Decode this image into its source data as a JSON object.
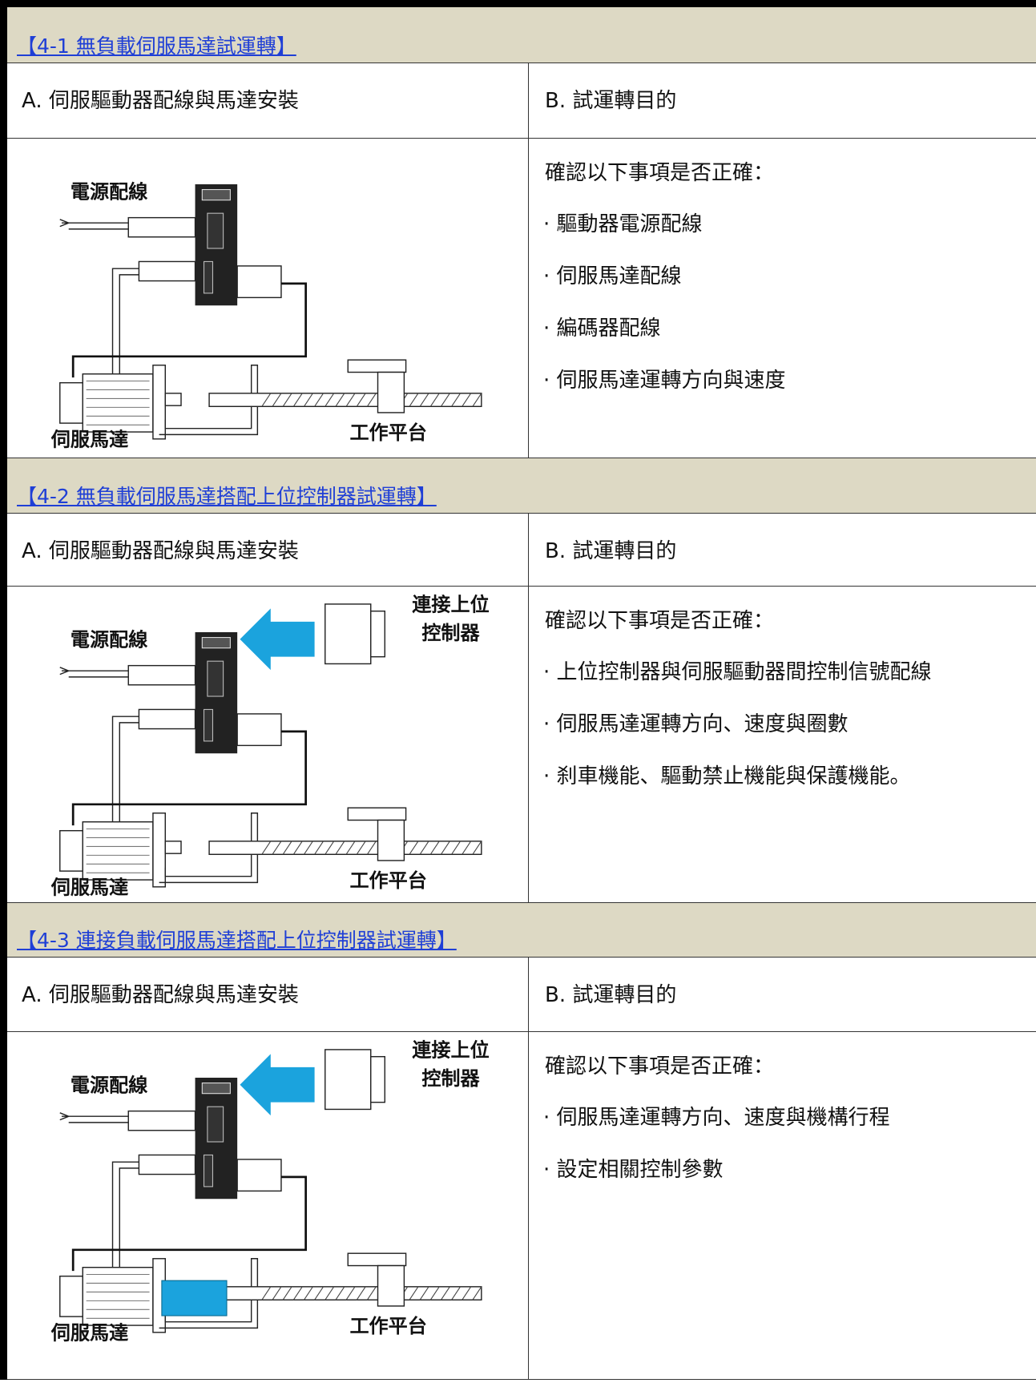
{
  "sections": [
    {
      "title": "【4-1 無負載伺服馬達試運轉】",
      "col_a": "A. 伺服驅動器配線與馬達安裝",
      "col_b": "B. 試運轉目的",
      "diagram": {
        "power": "電源配線",
        "motor": "伺服馬達",
        "platform": "工作平台"
      },
      "intro": "確認以下事項是否正確：",
      "items": [
        "· 驅動器電源配線",
        "· 伺服馬達配線",
        "· 編碼器配線",
        "· 伺服馬達運轉方向與速度"
      ]
    },
    {
      "title": "【4-2 無負載伺服馬達搭配上位控制器試運轉】",
      "col_a": "A. 伺服驅動器配線與馬達安裝",
      "col_b": "B. 試運轉目的",
      "diagram": {
        "power": "電源配線",
        "motor": "伺服馬達",
        "platform": "工作平台",
        "controller": [
          "連接上位",
          "控制器"
        ]
      },
      "intro": "確認以下事項是否正確：",
      "items": [
        "· 上位控制器與伺服驅動器間控制信號配線",
        "· 伺服馬達運轉方向、速度與圈數",
        "· 刹車機能、驅動禁止機能與保護機能。"
      ]
    },
    {
      "title": "【4-3 連接負載伺服馬達搭配上位控制器試運轉】",
      "col_a": "A. 伺服驅動器配線與馬達安裝",
      "col_b": "B. 試運轉目的",
      "diagram": {
        "power": "電源配線",
        "motor": "伺服馬達",
        "platform": "工作平台",
        "controller": [
          "連接上位",
          "控制器"
        ],
        "coupling": true
      },
      "intro": "確認以下事項是否正確：",
      "items": [
        "· 伺服馬達運轉方向、速度與機構行程",
        "· 設定相關控制參數"
      ]
    }
  ]
}
